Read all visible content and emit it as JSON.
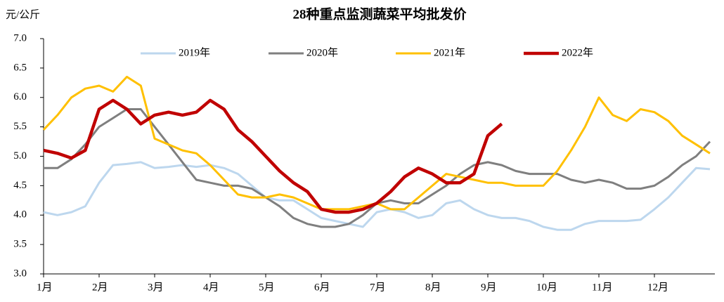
{
  "chart_data": {
    "type": "line",
    "title": "28种重点监测蔬菜平均批发价",
    "ylabel": "元/公斤",
    "categories": [
      "1月",
      null,
      null,
      null,
      "2月",
      null,
      null,
      null,
      "3月",
      null,
      null,
      null,
      "4月",
      null,
      null,
      null,
      "5月",
      null,
      null,
      null,
      "6月",
      null,
      null,
      null,
      "7月",
      null,
      null,
      null,
      "8月",
      null,
      null,
      null,
      "9月",
      null,
      null,
      null,
      "10月",
      null,
      null,
      null,
      "11月",
      null,
      null,
      null,
      "12月",
      null,
      null,
      null,
      null
    ],
    "ylim": [
      3.0,
      7.0
    ],
    "yticks": [
      {
        "value": 3.0,
        "label": "3.0"
      },
      {
        "value": 3.5,
        "label": "3.5"
      },
      {
        "value": 4.0,
        "label": "4.0"
      },
      {
        "value": 4.5,
        "label": "4.5"
      },
      {
        "value": 5.0,
        "label": "5.0"
      },
      {
        "value": 5.5,
        "label": "5.5"
      },
      {
        "value": 6.0,
        "label": "6.0"
      },
      {
        "value": 6.5,
        "label": "6.5"
      },
      {
        "value": 7.0,
        "label": "7.0"
      }
    ],
    "legend": "top",
    "series": [
      {
        "name": "2019年",
        "color": "#bdd7ee",
        "width": 3,
        "values": [
          4.05,
          4.0,
          4.05,
          4.15,
          4.55,
          4.85,
          4.87,
          4.9,
          4.8,
          4.82,
          4.85,
          4.82,
          4.85,
          4.8,
          4.7,
          4.5,
          4.3,
          4.25,
          4.25,
          4.1,
          3.95,
          3.9,
          3.85,
          3.8,
          4.05,
          4.1,
          4.05,
          3.95,
          4.0,
          4.2,
          4.25,
          4.1,
          4.0,
          3.95,
          3.95,
          3.9,
          3.8,
          3.75,
          3.75,
          3.85,
          3.9,
          3.9,
          3.9,
          3.92,
          4.1,
          4.3,
          4.55,
          4.8,
          4.78
        ]
      },
      {
        "name": "2020年",
        "color": "#7f7f7f",
        "width": 3,
        "values": [
          4.8,
          4.8,
          4.95,
          5.2,
          5.5,
          5.65,
          5.8,
          5.8,
          5.5,
          5.2,
          4.9,
          4.6,
          4.55,
          4.5,
          4.5,
          4.45,
          4.3,
          4.15,
          3.95,
          3.85,
          3.8,
          3.8,
          3.85,
          4.0,
          4.2,
          4.25,
          4.2,
          4.2,
          4.35,
          4.5,
          4.7,
          4.85,
          4.9,
          4.85,
          4.75,
          4.7,
          4.7,
          4.7,
          4.6,
          4.55,
          4.6,
          4.55,
          4.45,
          4.45,
          4.5,
          4.65,
          4.85,
          5.0,
          5.25
        ]
      },
      {
        "name": "2021年",
        "color": "#ffc000",
        "width": 3,
        "values": [
          5.45,
          5.7,
          6.0,
          6.15,
          6.2,
          6.1,
          6.35,
          6.2,
          5.3,
          5.2,
          5.1,
          5.05,
          4.85,
          4.6,
          4.35,
          4.3,
          4.3,
          4.35,
          4.3,
          4.2,
          4.1,
          4.1,
          4.1,
          4.15,
          4.2,
          4.1,
          4.1,
          4.3,
          4.5,
          4.7,
          4.65,
          4.6,
          4.55,
          4.55,
          4.5,
          4.5,
          4.5,
          4.75,
          5.1,
          5.5,
          6.0,
          5.7,
          5.6,
          5.8,
          5.75,
          5.6,
          5.35,
          5.2,
          5.05
        ]
      },
      {
        "name": "2022年",
        "color": "#c00000",
        "width": 4.5,
        "values": [
          5.1,
          5.05,
          4.97,
          5.1,
          5.8,
          5.95,
          5.8,
          5.55,
          5.7,
          5.75,
          5.7,
          5.75,
          5.95,
          5.8,
          5.45,
          5.25,
          5.0,
          4.75,
          4.55,
          4.4,
          4.1,
          4.05,
          4.05,
          4.1,
          4.2,
          4.4,
          4.65,
          4.8,
          4.7,
          4.55,
          4.55,
          4.7,
          5.35,
          5.55,
          null,
          null,
          null,
          null,
          null,
          null,
          null,
          null,
          null,
          null,
          null,
          null,
          null,
          null,
          null
        ]
      }
    ]
  }
}
